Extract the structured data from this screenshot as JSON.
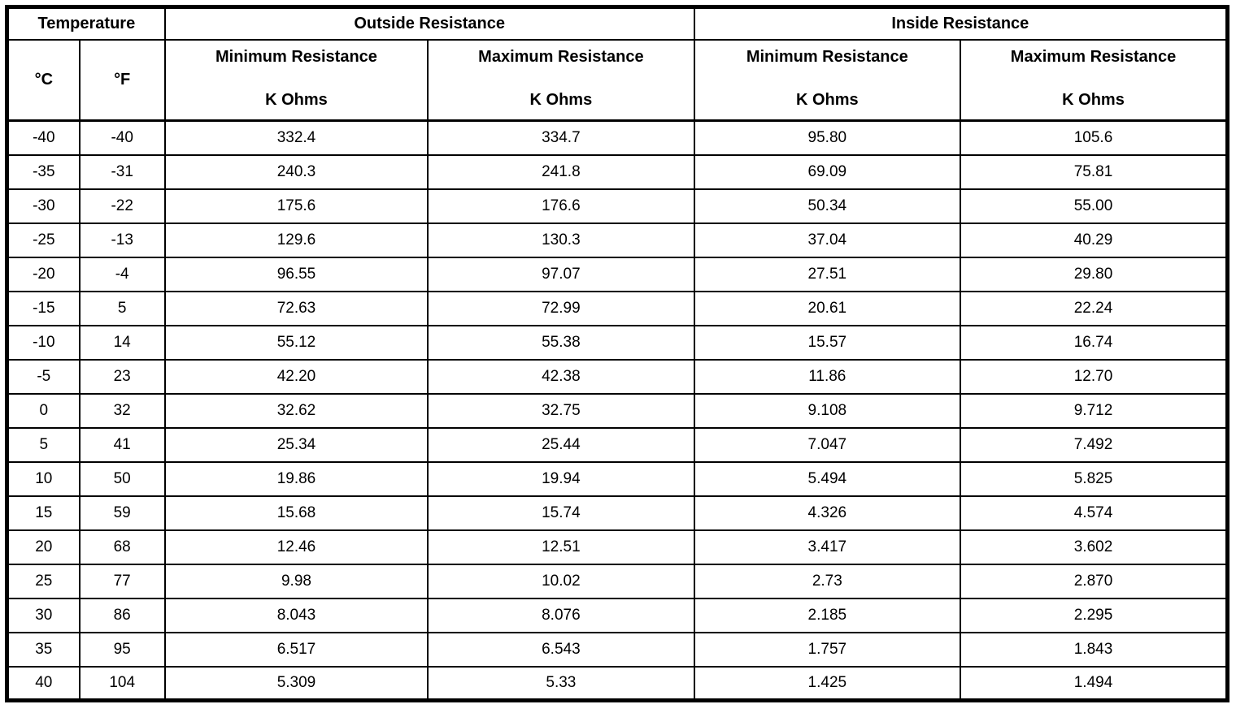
{
  "table": {
    "header": {
      "temperature": "Temperature",
      "outside": "Outside Resistance",
      "inside": "Inside Resistance",
      "celsius": "°C",
      "fahrenheit": "°F",
      "min_resistance": "Minimum Resistance",
      "max_resistance": "Maximum Resistance",
      "k_ohms": "K Ohms"
    },
    "rows": [
      [
        "-40",
        "-40",
        "332.4",
        "334.7",
        "95.80",
        "105.6"
      ],
      [
        "-35",
        "-31",
        "240.3",
        "241.8",
        "69.09",
        "75.81"
      ],
      [
        "-30",
        "-22",
        "175.6",
        "176.6",
        "50.34",
        "55.00"
      ],
      [
        "-25",
        "-13",
        "129.6",
        "130.3",
        "37.04",
        "40.29"
      ],
      [
        "-20",
        "-4",
        "96.55",
        "97.07",
        "27.51",
        "29.80"
      ],
      [
        "-15",
        "5",
        "72.63",
        "72.99",
        "20.61",
        "22.24"
      ],
      [
        "-10",
        "14",
        "55.12",
        "55.38",
        "15.57",
        "16.74"
      ],
      [
        "-5",
        "23",
        "42.20",
        "42.38",
        "11.86",
        "12.70"
      ],
      [
        "0",
        "32",
        "32.62",
        "32.75",
        "9.108",
        "9.712"
      ],
      [
        "5",
        "41",
        "25.34",
        "25.44",
        "7.047",
        "7.492"
      ],
      [
        "10",
        "50",
        "19.86",
        "19.94",
        "5.494",
        "5.825"
      ],
      [
        "15",
        "59",
        "15.68",
        "15.74",
        "4.326",
        "4.574"
      ],
      [
        "20",
        "68",
        "12.46",
        "12.51",
        "3.417",
        "3.602"
      ],
      [
        "25",
        "77",
        "9.98",
        "10.02",
        "2.73",
        "2.870"
      ],
      [
        "30",
        "86",
        "8.043",
        "8.076",
        "2.185",
        "2.295"
      ],
      [
        "35",
        "95",
        "6.517",
        "6.543",
        "1.757",
        "1.843"
      ],
      [
        "40",
        "104",
        "5.309",
        "5.33",
        "1.425",
        "1.494"
      ]
    ]
  }
}
